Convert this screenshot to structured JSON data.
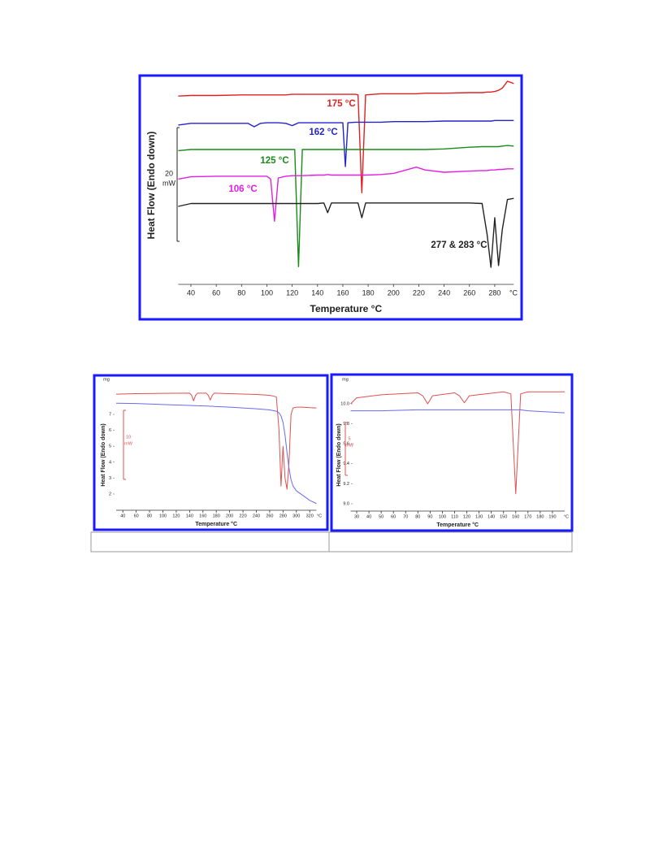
{
  "chart_data": [
    {
      "type": "line",
      "x_label": "Temperature °C",
      "y_label": "Heat Flow (Endo down)",
      "x_unit": "°C",
      "scale_value": "20",
      "scale_unit": "mW",
      "annotations": [
        {
          "text": "175 °C",
          "color": "#e02020"
        },
        {
          "text": "162 °C",
          "color": "#2424c8"
        },
        {
          "text": "125 °C",
          "color": "#1a8a1a"
        },
        {
          "text": "106 °C",
          "color": "#e020e0"
        },
        {
          "text": "277 & 283 °C",
          "color": "#222222"
        }
      ],
      "xlim": [
        30,
        295
      ],
      "xticks": [
        40,
        60,
        80,
        100,
        120,
        140,
        160,
        180,
        200,
        220,
        240,
        260,
        280
      ],
      "ylim": [
        0,
        35
      ],
      "x": [
        30,
        40,
        60,
        80,
        85,
        90,
        95,
        100,
        103,
        106,
        109,
        115,
        120,
        122,
        125,
        128,
        140,
        145,
        148,
        151,
        158,
        160,
        162,
        164,
        170,
        172,
        175,
        178,
        190,
        200,
        210,
        218,
        225,
        240,
        260,
        270,
        274,
        277,
        280,
        283,
        286,
        290,
        295
      ],
      "series": [
        {
          "color": "#e02020",
          "values": [
            32.4,
            32.5,
            32.5,
            32.6,
            32.6,
            32.6,
            32.6,
            32.6,
            32.6,
            32.6,
            32.6,
            32.6,
            32.7,
            32.7,
            32.7,
            32.7,
            32.7,
            32.7,
            32.7,
            32.7,
            32.7,
            32.7,
            32.7,
            32.7,
            32.7,
            32.6,
            15.4,
            32.6,
            32.8,
            32.8,
            32.8,
            32.8,
            32.9,
            32.9,
            33,
            33,
            33.1,
            33.1,
            33.2,
            33.4,
            33.8,
            35,
            34.6
          ]
        },
        {
          "color": "#2424c8",
          "values": [
            27.3,
            27.6,
            27.6,
            27.6,
            27.6,
            27,
            27.6,
            27.7,
            27.7,
            27.7,
            27.7,
            27.6,
            27.2,
            27.4,
            27.7,
            27.7,
            27.7,
            27.7,
            27.7,
            27.7,
            27.7,
            27.7,
            20,
            27.7,
            27.8,
            27.8,
            27.8,
            27.8,
            27.8,
            27.9,
            27.9,
            27.9,
            27.9,
            28,
            28,
            28,
            28,
            28,
            28.1,
            28.1,
            28.1,
            28.1,
            28.1
          ]
        },
        {
          "color": "#1a8a1a",
          "values": [
            22.8,
            23,
            23,
            23,
            23,
            23,
            23,
            23,
            23,
            23,
            23,
            23,
            23,
            23,
            2.4,
            23,
            23,
            23,
            23,
            23,
            23,
            23,
            23,
            23,
            23,
            23,
            23,
            23,
            23,
            23,
            23,
            23,
            23,
            23.1,
            23.4,
            23.5,
            23.5,
            23.5,
            23.5,
            23.5,
            23.6,
            23.7,
            23.6
          ]
        },
        {
          "color": "#e020e0",
          "values": [
            17.8,
            18.2,
            18.3,
            18.3,
            18.3,
            18.3,
            18.3,
            18.3,
            17.8,
            10.4,
            18,
            18.3,
            18.4,
            18.4,
            18.4,
            18.4,
            18.5,
            18.5,
            18.6,
            18.5,
            18.5,
            18.5,
            18.5,
            18.5,
            18.5,
            18.5,
            18.5,
            18.5,
            18.6,
            18.8,
            19.4,
            19.9,
            19.4,
            19,
            19.2,
            19.3,
            19.3,
            19.4,
            19.4,
            19.5,
            19.5,
            19.6,
            19.6
          ]
        },
        {
          "color": "#222222",
          "values": [
            13,
            13.5,
            13.5,
            13.5,
            13.5,
            13.5,
            13.5,
            13.5,
            13.5,
            13.5,
            13.5,
            13.5,
            13.5,
            13.5,
            13.5,
            13.5,
            13.5,
            13.6,
            11.9,
            13.6,
            13.6,
            13.6,
            13.6,
            13.6,
            13.6,
            13.6,
            11,
            13.6,
            13.6,
            13.6,
            13.6,
            13.6,
            13.6,
            13.6,
            13.6,
            13.5,
            8,
            2.3,
            11,
            2.6,
            9,
            14.2,
            14.4
          ]
        }
      ]
    },
    {
      "type": "line",
      "x_label": "Temperature °C",
      "y_label": "Heat Flow (Endo down)",
      "x_unit": "°C",
      "y_unit": "mg",
      "scale_value": "10",
      "scale_unit": "mW",
      "xlim": [
        30,
        330
      ],
      "xticks": [
        40,
        60,
        80,
        100,
        120,
        140,
        160,
        180,
        200,
        220,
        240,
        260,
        280,
        300,
        320
      ],
      "ylim": [
        1,
        9
      ],
      "yticks": [
        2,
        3,
        4,
        5,
        6,
        7
      ],
      "x": [
        30,
        60,
        100,
        140,
        143,
        146,
        149,
        152,
        165,
        168,
        171,
        174,
        177,
        200,
        240,
        260,
        270,
        274,
        277,
        280,
        283,
        286,
        289,
        292,
        295,
        300,
        310,
        320,
        330
      ],
      "series": [
        {
          "color": "#e05050",
          "values": [
            8.27,
            8.3,
            8.32,
            8.33,
            8.2,
            7.85,
            8.2,
            8.33,
            8.33,
            8.2,
            7.9,
            8.2,
            8.33,
            8.3,
            8.25,
            8.2,
            8.1,
            6,
            2.5,
            5,
            3,
            2.3,
            4,
            7,
            7.4,
            7.45,
            7.45,
            7.42,
            7.4
          ]
        },
        {
          "color": "#6a6aee",
          "values": [
            7.7,
            7.68,
            7.62,
            7.56,
            7.56,
            7.55,
            7.55,
            7.54,
            7.52,
            7.52,
            7.51,
            7.51,
            7.5,
            7.45,
            7.35,
            7.28,
            7.2,
            7.1,
            6.9,
            6.5,
            5.7,
            4.6,
            3.6,
            2.9,
            2.5,
            2.2,
            1.9,
            1.6,
            1.4
          ]
        }
      ]
    },
    {
      "type": "line",
      "x_label": "Temperature °C",
      "y_label": "Heat Flow (Endo down)",
      "x_unit": "°C",
      "y_unit": "mg",
      "scale_value": "5",
      "scale_unit": "mW",
      "xlim": [
        25,
        200
      ],
      "xticks": [
        30,
        40,
        50,
        60,
        70,
        80,
        90,
        100,
        110,
        120,
        130,
        140,
        150,
        160,
        170,
        180,
        190
      ],
      "ylim": [
        8.93,
        10.2
      ],
      "yticks": [
        {
          "value": 9,
          "label": "9.0"
        },
        9.2,
        9.4,
        9.6,
        9.8,
        {
          "value": 10,
          "label": "10.0"
        }
      ],
      "x": [
        25,
        30,
        50,
        80,
        84,
        88,
        92,
        110,
        114,
        118,
        122,
        150,
        156,
        158,
        160,
        162,
        164,
        170,
        200
      ],
      "series": [
        {
          "color": "#e05050",
          "values": [
            10.0,
            10.06,
            10.09,
            10.11,
            10.08,
            10.0,
            10.08,
            10.11,
            10.08,
            10.01,
            10.08,
            10.12,
            10.1,
            9.6,
            9.1,
            9.6,
            10.1,
            10.12,
            10.12
          ]
        },
        {
          "color": "#6a6aee",
          "values": [
            9.93,
            9.93,
            9.93,
            9.94,
            9.94,
            9.94,
            9.94,
            9.94,
            9.94,
            9.94,
            9.94,
            9.94,
            9.94,
            9.94,
            9.94,
            9.94,
            9.94,
            9.93,
            9.91
          ]
        }
      ]
    }
  ]
}
